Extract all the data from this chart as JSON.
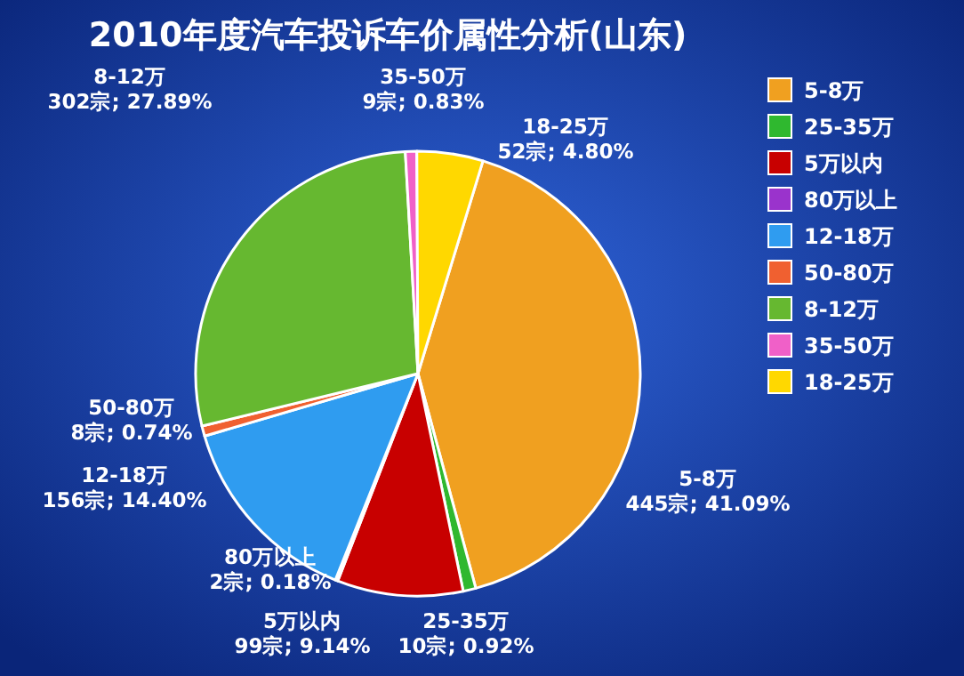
{
  "chart_data": {
    "type": "pie",
    "title": "2010年度汽车投诉车价属性分析(山东)",
    "categories": [
      "5-8万",
      "25-35万",
      "5万以内",
      "80万以上",
      "12-18万",
      "50-80万",
      "8-12万",
      "35-50万",
      "18-25万"
    ],
    "values": [
      445,
      10,
      99,
      2,
      156,
      8,
      302,
      9,
      52
    ],
    "value_labels": [
      "445宗; 41.09%",
      "10宗; 0.92%",
      "99宗; 9.14%",
      "2宗; 0.18%",
      "156宗; 14.40%",
      "8宗; 0.74%",
      "302宗; 27.89%",
      "9宗; 0.83%",
      "52宗; 4.80%"
    ],
    "colors": [
      "#f0a020",
      "#2fb82f",
      "#c80000",
      "#9a33cc",
      "#2f9cf0",
      "#f06030",
      "#66b830",
      "#f060c8",
      "#ffd800"
    ],
    "legend": "top right"
  }
}
